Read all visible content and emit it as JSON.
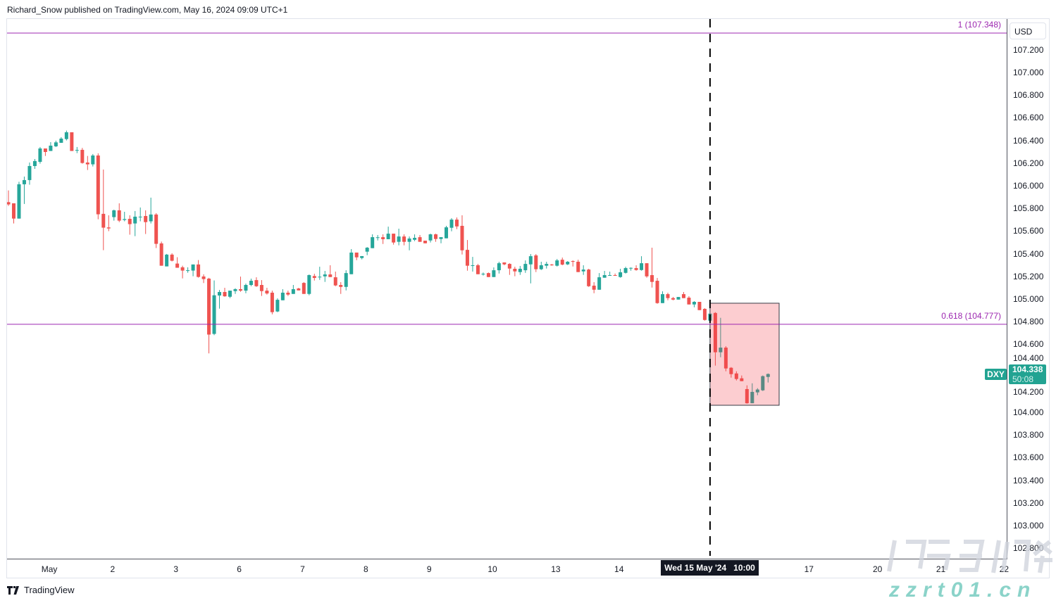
{
  "header": {
    "text": "Richard_Snow published on TradingView.com, May 16, 2024 09:09 UTC+1"
  },
  "footer": {
    "brand": "TradingView"
  },
  "watermark": {
    "cn": "海马财经",
    "url": "zzrt01.cn"
  },
  "colors": {
    "up": "#26a69a",
    "down": "#ef5350",
    "fib": "#9c27b0",
    "box_fill": "#f7a8b0",
    "last_price": "#22a392"
  },
  "chart_data": {
    "type": "candlestick",
    "symbol": "DXY",
    "currency": "USD",
    "timeframe_hours": 2,
    "ylim": [
      102.714,
      107.472
    ],
    "grid": false,
    "y_ticks": [
      "102.800",
      "103.000",
      "103.200",
      "103.400",
      "103.600",
      "103.800",
      "104.000",
      "104.200",
      "104.400",
      "104.600",
      "104.800",
      "105.000",
      "105.200",
      "105.400",
      "105.600",
      "105.800",
      "106.000",
      "106.200",
      "106.400",
      "106.600",
      "106.800",
      "107.000",
      "107.200"
    ],
    "x_ticks": [
      {
        "label": "May",
        "bar": 8
      },
      {
        "label": "2",
        "bar": 20
      },
      {
        "label": "3",
        "bar": 32
      },
      {
        "label": "6",
        "bar": 44
      },
      {
        "label": "7",
        "bar": 56
      },
      {
        "label": "8",
        "bar": 68
      },
      {
        "label": "9",
        "bar": 80
      },
      {
        "label": "10",
        "bar": 92
      },
      {
        "label": "13",
        "bar": 104
      },
      {
        "label": "14",
        "bar": 116
      },
      {
        "label": "17",
        "bar": 152
      },
      {
        "label": "20",
        "bar": 165
      },
      {
        "label": "21",
        "bar": 177
      },
      {
        "label": "22",
        "bar": 189
      }
    ],
    "crosshair": {
      "label": "Wed 15 May '24   10:00",
      "bar": 133
    },
    "fib_levels": [
      {
        "label": "1 (107.348)",
        "price": 107.348
      },
      {
        "label": "0.618 (104.777)",
        "price": 104.777
      }
    ],
    "highlight_box": {
      "bar_start": 133,
      "bar_end": 146.1,
      "price_top": 104.963,
      "price_bottom": 104.062
    },
    "last_price": {
      "symbol": "DXY",
      "value": "104.338",
      "countdown": "50:08"
    },
    "ohlc": [
      [
        105.855,
        105.959,
        105.822,
        105.835
      ],
      [
        105.845,
        105.845,
        105.667,
        105.71
      ],
      [
        105.71,
        106.035,
        105.71,
        106.013
      ],
      [
        106.013,
        106.081,
        105.839,
        106.05
      ],
      [
        106.05,
        106.205,
        106.009,
        106.174
      ],
      [
        106.174,
        106.236,
        106.149,
        106.218
      ],
      [
        106.211,
        106.342,
        106.195,
        106.329
      ],
      [
        106.329,
        106.329,
        106.263,
        106.298
      ],
      [
        106.307,
        106.385,
        106.307,
        106.354
      ],
      [
        106.348,
        106.398,
        106.342,
        106.383
      ],
      [
        106.379,
        106.429,
        106.379,
        106.416
      ],
      [
        106.412,
        106.487,
        106.4,
        106.472
      ],
      [
        106.472,
        106.472,
        106.307,
        106.307
      ],
      [
        106.315,
        106.342,
        106.288,
        106.316
      ],
      [
        106.317,
        106.334,
        106.195,
        106.201
      ],
      [
        106.205,
        106.263,
        106.139,
        106.189
      ],
      [
        106.189,
        106.28,
        106.17,
        106.267
      ],
      [
        106.267,
        106.286,
        105.704,
        105.748
      ],
      [
        105.752,
        106.143,
        105.431,
        105.63
      ],
      [
        105.632,
        105.739,
        105.599,
        105.623
      ],
      [
        105.723,
        105.789,
        105.692,
        105.783
      ],
      [
        105.783,
        105.845,
        105.679,
        105.692
      ],
      [
        105.698,
        105.77,
        105.686,
        105.706
      ],
      [
        105.708,
        105.739,
        105.568,
        105.661
      ],
      [
        105.667,
        105.777,
        105.555,
        105.727
      ],
      [
        105.725,
        105.808,
        105.686,
        105.727
      ],
      [
        105.733,
        105.783,
        105.574,
        105.679
      ],
      [
        105.686,
        105.895,
        105.667,
        105.746
      ],
      [
        105.746,
        105.758,
        105.45,
        105.487
      ],
      [
        105.491,
        105.507,
        105.294,
        105.294
      ],
      [
        105.288,
        105.398,
        105.288,
        105.392
      ],
      [
        105.392,
        105.404,
        105.332,
        105.338
      ],
      [
        105.313,
        105.369,
        105.276,
        105.276
      ],
      [
        105.28,
        105.294,
        105.182,
        105.251
      ],
      [
        105.253,
        105.28,
        105.232,
        105.254
      ],
      [
        105.251,
        105.305,
        105.201,
        105.305
      ],
      [
        105.305,
        105.344,
        105.189,
        105.195
      ],
      [
        105.199,
        105.218,
        105.141,
        105.176
      ],
      [
        105.18,
        105.187,
        104.52,
        104.686
      ],
      [
        104.692,
        105.164,
        104.681,
        105.033
      ],
      [
        105.031,
        105.08,
        104.915,
        105.062
      ],
      [
        105.062,
        105.099,
        105.02,
        105.024
      ],
      [
        105.02,
        105.074,
        105.008,
        105.074
      ],
      [
        105.07,
        105.095,
        105.045,
        105.087
      ],
      [
        105.087,
        105.198,
        105.064,
        105.074
      ],
      [
        105.074,
        105.136,
        105.051,
        105.124
      ],
      [
        105.124,
        105.18,
        105.113,
        105.161
      ],
      [
        105.167,
        105.192,
        105.107,
        105.113
      ],
      [
        105.124,
        105.167,
        105.027,
        105.07
      ],
      [
        105.074,
        105.099,
        105.039,
        105.049
      ],
      [
        105.056,
        105.074,
        104.865,
        104.884
      ],
      [
        104.89,
        105.006,
        104.884,
        104.993
      ],
      [
        104.989,
        105.087,
        104.989,
        105.056
      ],
      [
        105.056,
        105.074,
        105.027,
        105.039
      ],
      [
        105.045,
        105.124,
        105.045,
        105.087
      ],
      [
        105.093,
        105.099,
        105.076,
        105.076
      ],
      [
        105.142,
        105.149,
        105.045,
        105.045
      ],
      [
        105.045,
        105.217,
        105.033,
        105.211
      ],
      [
        105.203,
        105.223,
        105.163,
        105.186
      ],
      [
        105.196,
        105.285,
        105.169,
        105.197
      ],
      [
        105.2,
        105.248,
        105.151,
        105.217
      ],
      [
        105.217,
        105.298,
        105.194,
        105.194
      ],
      [
        105.192,
        105.242,
        105.113,
        105.12
      ],
      [
        105.124,
        105.149,
        105.045,
        105.107
      ],
      [
        105.107,
        105.254,
        105.076,
        105.229
      ],
      [
        105.219,
        105.441,
        105.219,
        105.41
      ],
      [
        105.41,
        105.41,
        105.343,
        105.368
      ],
      [
        105.362,
        105.379,
        105.35,
        105.379
      ],
      [
        105.418,
        105.459,
        105.387,
        105.453
      ],
      [
        105.449,
        105.571,
        105.449,
        105.546
      ],
      [
        105.544,
        105.565,
        105.517,
        105.545
      ],
      [
        105.546,
        105.571,
        105.486,
        105.528
      ],
      [
        105.528,
        105.639,
        105.528,
        105.577
      ],
      [
        105.577,
        105.577,
        105.48,
        105.499
      ],
      [
        105.505,
        105.621,
        105.474,
        105.552
      ],
      [
        105.552,
        105.571,
        105.474,
        105.505
      ],
      [
        105.505,
        105.552,
        105.43,
        105.534
      ],
      [
        105.523,
        105.571,
        105.511,
        105.54
      ],
      [
        105.546,
        105.565,
        105.505,
        105.505
      ],
      [
        105.515,
        105.515,
        105.492,
        105.492
      ],
      [
        105.517,
        105.577,
        105.499,
        105.571
      ],
      [
        105.571,
        105.577,
        105.505,
        105.53
      ],
      [
        105.53,
        105.546,
        105.492,
        105.546
      ],
      [
        105.536,
        105.646,
        105.536,
        105.633
      ],
      [
        105.629,
        105.714,
        105.598,
        105.701
      ],
      [
        105.701,
        105.72,
        105.617,
        105.641
      ],
      [
        105.646,
        105.739,
        105.393,
        105.43
      ],
      [
        105.434,
        105.521,
        105.25,
        105.294
      ],
      [
        105.294,
        105.372,
        105.242,
        105.298
      ],
      [
        105.298,
        105.31,
        105.219,
        105.219
      ],
      [
        105.219,
        105.234,
        105.207,
        105.223
      ],
      [
        105.229,
        105.234,
        105.194,
        105.194
      ],
      [
        105.194,
        105.279,
        105.194,
        105.254
      ],
      [
        105.254,
        105.329,
        105.225,
        105.316
      ],
      [
        105.323,
        105.323,
        105.298,
        105.306
      ],
      [
        105.31,
        105.316,
        105.213,
        105.269
      ],
      [
        105.267,
        105.285,
        105.201,
        105.244
      ],
      [
        105.238,
        105.292,
        105.213,
        105.267
      ],
      [
        105.254,
        105.341,
        105.231,
        105.31
      ],
      [
        105.306,
        105.397,
        105.138,
        105.378
      ],
      [
        105.385,
        105.397,
        105.238,
        105.263
      ],
      [
        105.263,
        105.329,
        105.256,
        105.298
      ],
      [
        105.294,
        105.329,
        105.269,
        105.31
      ],
      [
        105.304,
        105.31,
        105.294,
        105.298
      ],
      [
        105.294,
        105.354,
        105.287,
        105.341
      ],
      [
        105.347,
        105.366,
        105.298,
        105.304
      ],
      [
        105.306,
        105.335,
        105.3,
        105.329
      ],
      [
        105.335,
        105.341,
        105.287,
        105.331
      ],
      [
        105.329,
        105.347,
        105.238,
        105.238
      ],
      [
        105.244,
        105.298,
        105.213,
        105.26
      ],
      [
        105.26,
        105.267,
        105.107,
        105.113
      ],
      [
        105.118,
        105.149,
        105.051,
        105.082
      ],
      [
        105.082,
        105.229,
        105.082,
        105.192
      ],
      [
        105.188,
        105.248,
        105.188,
        105.211
      ],
      [
        105.209,
        105.242,
        105.209,
        105.211
      ],
      [
        105.211,
        105.225,
        105.207,
        105.207
      ],
      [
        105.194,
        105.267,
        105.188,
        105.236
      ],
      [
        105.231,
        105.285,
        105.225,
        105.273
      ],
      [
        105.273,
        105.279,
        105.25,
        105.275
      ],
      [
        105.273,
        105.298,
        105.25,
        105.256
      ],
      [
        105.256,
        105.378,
        105.25,
        105.316
      ],
      [
        105.316,
        105.316,
        105.188,
        105.2
      ],
      [
        105.211,
        105.453,
        105.101,
        105.151
      ],
      [
        105.161,
        105.186,
        104.958,
        104.964
      ],
      [
        104.964,
        105.068,
        104.964,
        105.043
      ],
      [
        105.043,
        105.056,
        104.989,
        105.008
      ],
      [
        105.008,
        105.018,
        104.989,
        104.995
      ],
      [
        104.995,
        105.018,
        104.995,
        105.018
      ],
      [
        105.043,
        105.062,
        105.008,
        105.008
      ],
      [
        105.012,
        105.025,
        104.952,
        104.952
      ],
      [
        104.952,
        104.981,
        104.927,
        104.975
      ],
      [
        104.975,
        104.975,
        104.902,
        104.902
      ],
      [
        104.913,
        104.919,
        104.809,
        104.815
      ],
      [
        104.809,
        104.871,
        104.809,
        104.871
      ],
      [
        104.877,
        104.884,
        104.412,
        104.53
      ],
      [
        104.53,
        104.834,
        104.486,
        104.571
      ],
      [
        104.571,
        104.584,
        104.362,
        104.387
      ],
      [
        104.393,
        104.399,
        104.306,
        104.337
      ],
      [
        104.343,
        104.362,
        104.281,
        104.294
      ],
      [
        104.3,
        104.325,
        104.275,
        104.275
      ],
      [
        104.205,
        104.238,
        104.076,
        104.08
      ],
      [
        104.08,
        104.256,
        104.08,
        104.18
      ],
      [
        104.176,
        104.213,
        104.151,
        104.201
      ],
      [
        104.194,
        104.325,
        104.188,
        104.319
      ],
      [
        104.312,
        104.343,
        104.263,
        104.338
      ]
    ]
  }
}
